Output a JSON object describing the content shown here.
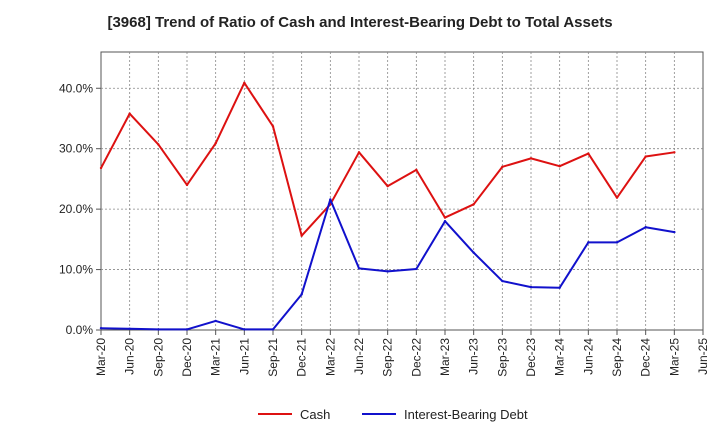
{
  "chart_data": {
    "type": "line",
    "title": "[3968]  Trend of Ratio of Cash and Interest-Bearing Debt to Total Assets",
    "xlabel": "",
    "ylabel": "",
    "ylim": [
      0,
      46
    ],
    "y_ticks": [
      0,
      10,
      20,
      30,
      40
    ],
    "y_tick_labels": [
      "0.0%",
      "10.0%",
      "20.0%",
      "30.0%",
      "40.0%"
    ],
    "grid": true,
    "legend_position": "bottom-center",
    "categories": [
      "Mar-20",
      "Jun-20",
      "Sep-20",
      "Dec-20",
      "Mar-21",
      "Jun-21",
      "Sep-21",
      "Dec-21",
      "Mar-22",
      "Jun-22",
      "Sep-22",
      "Dec-22",
      "Mar-23",
      "Jun-23",
      "Sep-23",
      "Dec-23",
      "Mar-24",
      "Jun-24",
      "Sep-24",
      "Dec-24",
      "Mar-25",
      "Jun-25"
    ],
    "series": [
      {
        "name": "Cash",
        "color": "#dd1111",
        "values": [
          26.8,
          35.8,
          30.7,
          24.0,
          30.9,
          40.9,
          33.7,
          15.6,
          20.8,
          29.4,
          23.8,
          26.5,
          18.6,
          20.8,
          27.0,
          28.4,
          27.1,
          29.2,
          21.9,
          28.7,
          29.4,
          null
        ]
      },
      {
        "name": "Interest-Bearing Debt",
        "color": "#1111cc",
        "values": [
          0.3,
          0.2,
          0.1,
          0.1,
          1.5,
          0.1,
          0.1,
          5.9,
          21.6,
          10.2,
          9.7,
          10.1,
          18.0,
          12.8,
          8.1,
          7.1,
          7.0,
          14.5,
          14.5,
          17.0,
          16.2,
          null
        ]
      }
    ]
  }
}
